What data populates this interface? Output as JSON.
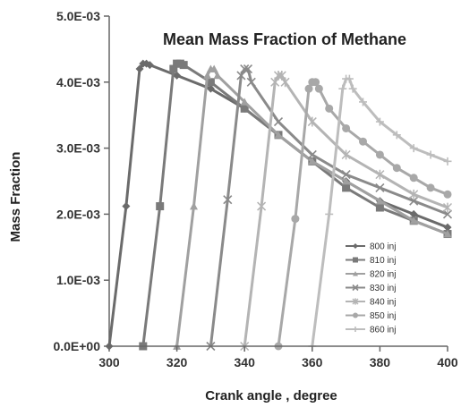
{
  "chart_data": {
    "type": "line",
    "title": "Mean Mass Fraction of Methane",
    "xlabel": "Crank angle , degree",
    "ylabel": "Mass Fraction",
    "xlim": [
      300,
      400
    ],
    "ylim": [
      0,
      0.005
    ],
    "x_ticks": [
      300,
      320,
      340,
      360,
      380,
      400
    ],
    "x_tick_labels": [
      "300",
      "320",
      "340",
      "360",
      "380",
      "400"
    ],
    "y_ticks": [
      0,
      0.001,
      0.002,
      0.003,
      0.004,
      0.005
    ],
    "y_tick_labels": [
      "0.0E+00",
      "1.0E-03",
      "2.0E-03",
      "3.0E-03",
      "4.0E-03",
      "5.0E-03"
    ],
    "grid": false,
    "legend_position": "bottom-right",
    "series": [
      {
        "name": "800 inj",
        "marker": "diamond",
        "color": "#6b6b6b",
        "x": [
          300,
          305,
          309,
          310,
          311,
          312,
          320,
          330,
          340,
          350,
          360,
          370,
          380,
          390,
          400
        ],
        "y": [
          0,
          0.00212,
          0.0042,
          0.00428,
          0.00428,
          0.00426,
          0.0041,
          0.0039,
          0.0036,
          0.0032,
          0.0028,
          0.0025,
          0.0022,
          0.002,
          0.0018
        ]
      },
      {
        "name": "810 inj",
        "marker": "square",
        "color": "#7a7a7a",
        "x": [
          310,
          315,
          319,
          320,
          321,
          322,
          330,
          340,
          350,
          360,
          370,
          380,
          390,
          400
        ],
        "y": [
          0,
          0.00212,
          0.0042,
          0.00428,
          0.00428,
          0.00426,
          0.004,
          0.0036,
          0.0032,
          0.0028,
          0.0024,
          0.0021,
          0.0019,
          0.0017
        ]
      },
      {
        "name": "820 inj",
        "marker": "triangle",
        "color": "#a0a0a0",
        "x": [
          320,
          325,
          329,
          330,
          331,
          332,
          340,
          350,
          360,
          370,
          380,
          390,
          400
        ],
        "y": [
          0,
          0.00212,
          0.0041,
          0.0042,
          0.0042,
          0.0041,
          0.0037,
          0.0032,
          0.0028,
          0.0025,
          0.0022,
          0.0019,
          0.0017
        ]
      },
      {
        "name": "830 inj",
        "marker": "x",
        "color": "#8a8a8a",
        "x": [
          330,
          335,
          339,
          340,
          341,
          342,
          350,
          360,
          370,
          380,
          390,
          400
        ],
        "y": [
          0,
          0.00222,
          0.0041,
          0.0042,
          0.0042,
          0.004,
          0.0034,
          0.0029,
          0.0026,
          0.0024,
          0.0022,
          0.002
        ]
      },
      {
        "name": "840 inj",
        "marker": "star",
        "color": "#b4b4b4",
        "x": [
          340,
          345,
          349,
          350,
          351,
          352,
          360,
          370,
          380,
          390,
          400
        ],
        "y": [
          0,
          0.00212,
          0.004,
          0.0041,
          0.0041,
          0.004,
          0.0034,
          0.0029,
          0.0026,
          0.0023,
          0.0021
        ]
      },
      {
        "name": "850 inj",
        "marker": "circle",
        "color": "#a8a8a8",
        "x": [
          350,
          355,
          359,
          360,
          361,
          362,
          365,
          370,
          375,
          380,
          385,
          390,
          395,
          400
        ],
        "y": [
          0,
          0.00193,
          0.0039,
          0.004,
          0.004,
          0.0039,
          0.0036,
          0.0033,
          0.0031,
          0.0029,
          0.0027,
          0.00255,
          0.0024,
          0.0023
        ]
      },
      {
        "name": "860 inj",
        "marker": "plus",
        "color": "#bdbdbd",
        "x": [
          360,
          365,
          369,
          370,
          371,
          372,
          375,
          380,
          385,
          390,
          395,
          400
        ],
        "y": [
          0,
          0.002,
          0.0039,
          0.00405,
          0.00405,
          0.0039,
          0.0037,
          0.0034,
          0.0032,
          0.003,
          0.0029,
          0.0028
        ]
      }
    ]
  }
}
